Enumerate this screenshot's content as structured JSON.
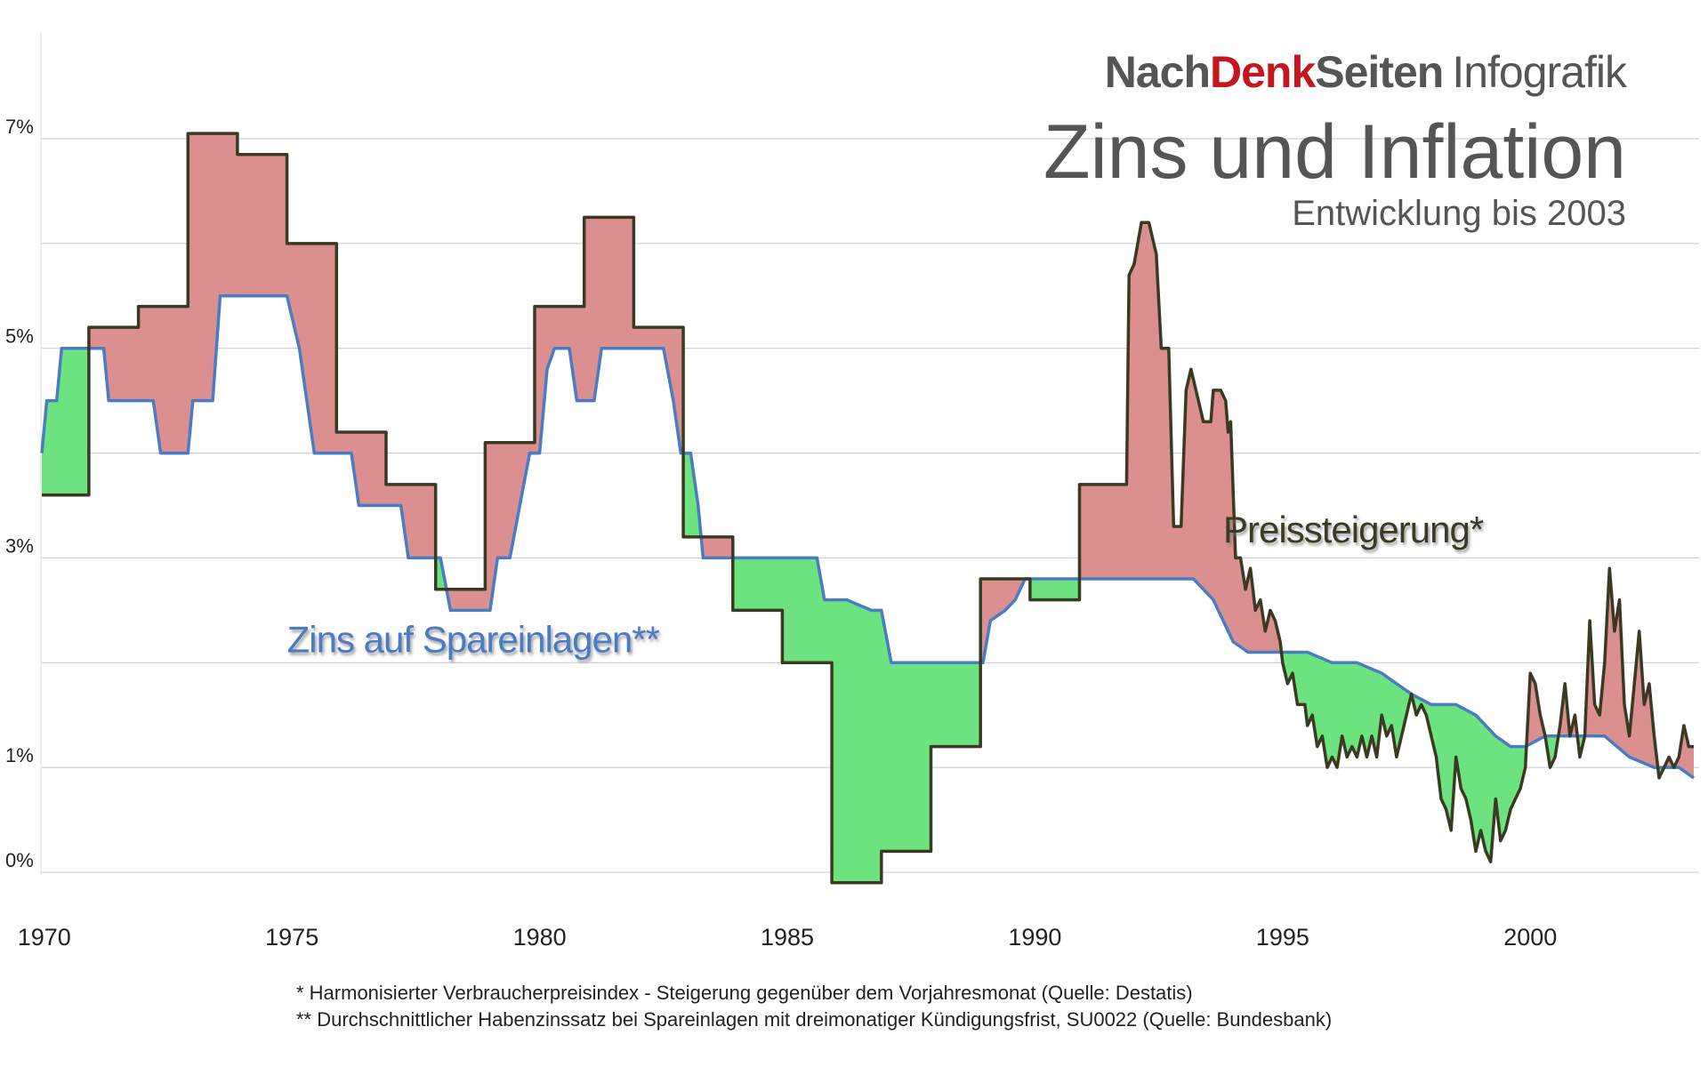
{
  "header": {
    "brand_nach": "Nach",
    "brand_denk": "Denk",
    "brand_seiten": "Seiten",
    "brand_suffix": "Infografik",
    "title": "Zins und Inflation",
    "subtitle": "Entwicklung bis 2003"
  },
  "footnotes": [
    "* Harmonisierter Verbraucherpreisindex - Steigerung gegenüber dem Vorjahresmonat (Quelle: Destatis)",
    "** Durchschnittlicher Habenzinssatz bei Spareinlagen mit dreimonatiger Kündigungsfrist, SU0022 (Quelle: Bundesbank)"
  ],
  "colors": {
    "inflation_line": "#3a3a22",
    "interest_line": "#4a7cc4",
    "inflation_above_fill": "#dc8f8f",
    "interest_above_fill": "#6ce37e",
    "grid": "#c8c8c8",
    "brand_red": "#c4161c",
    "text_gray": "#555555"
  },
  "chart_data": {
    "type": "area",
    "x_range": [
      1969.95,
      2003.3
    ],
    "ylim": [
      -0.2,
      7
    ],
    "y_ticks": [
      {
        "value": 0,
        "label": "0%"
      },
      {
        "value": 1,
        "label": "1%"
      },
      {
        "value": 3,
        "label": "3%"
      },
      {
        "value": 5,
        "label": "5%"
      },
      {
        "value": 7,
        "label": "7%"
      }
    ],
    "grid_values": [
      0,
      1,
      2,
      3,
      4,
      5,
      6,
      7
    ],
    "x_ticks": [
      {
        "value": 1970,
        "label": "1970"
      },
      {
        "value": 1975,
        "label": "1975"
      },
      {
        "value": 1980,
        "label": "1980"
      },
      {
        "value": 1985,
        "label": "1985"
      },
      {
        "value": 1990,
        "label": "1990"
      },
      {
        "value": 1995,
        "label": "1995"
      },
      {
        "value": 2000,
        "label": "2000"
      }
    ],
    "series": [
      {
        "name": "Preissteigerung*",
        "values": [
          [
            1969.95,
            3.6
          ],
          [
            1970.9,
            3.6
          ],
          [
            1970.9,
            5.2
          ],
          [
            1971.9,
            5.2
          ],
          [
            1971.9,
            5.4
          ],
          [
            1972.9,
            5.4
          ],
          [
            1972.9,
            7.05
          ],
          [
            1973.9,
            7.05
          ],
          [
            1973.9,
            6.85
          ],
          [
            1974.9,
            6.85
          ],
          [
            1974.9,
            6.0
          ],
          [
            1975.9,
            6.0
          ],
          [
            1975.9,
            4.2
          ],
          [
            1976.9,
            4.2
          ],
          [
            1976.9,
            3.7
          ],
          [
            1977.9,
            3.7
          ],
          [
            1977.9,
            2.7
          ],
          [
            1978.9,
            2.7
          ],
          [
            1978.9,
            4.1
          ],
          [
            1979.9,
            4.1
          ],
          [
            1979.9,
            5.4
          ],
          [
            1980.9,
            5.4
          ],
          [
            1980.9,
            6.25
          ],
          [
            1981.9,
            6.25
          ],
          [
            1981.9,
            5.2
          ],
          [
            1982.9,
            5.2
          ],
          [
            1982.9,
            3.2
          ],
          [
            1983.9,
            3.2
          ],
          [
            1983.9,
            2.5
          ],
          [
            1984.9,
            2.5
          ],
          [
            1984.9,
            2.0
          ],
          [
            1985.9,
            2.0
          ],
          [
            1985.9,
            -0.1
          ],
          [
            1986.9,
            -0.1
          ],
          [
            1986.9,
            0.2
          ],
          [
            1987.9,
            0.2
          ],
          [
            1987.9,
            1.2
          ],
          [
            1988.9,
            1.2
          ],
          [
            1988.9,
            2.8
          ],
          [
            1989.9,
            2.8
          ],
          [
            1989.9,
            2.6
          ],
          [
            1990.9,
            2.6
          ],
          [
            1990.9,
            3.7
          ],
          [
            1991.85,
            3.7
          ],
          [
            1991.9,
            5.7
          ],
          [
            1992.0,
            5.8
          ],
          [
            1992.15,
            6.2
          ],
          [
            1992.3,
            6.2
          ],
          [
            1992.45,
            5.9
          ],
          [
            1992.55,
            5.0
          ],
          [
            1992.7,
            5.0
          ],
          [
            1992.8,
            3.3
          ],
          [
            1992.95,
            3.3
          ],
          [
            1993.05,
            4.6
          ],
          [
            1993.15,
            4.8
          ],
          [
            1993.3,
            4.5
          ],
          [
            1993.4,
            4.3
          ],
          [
            1993.55,
            4.3
          ],
          [
            1993.6,
            4.6
          ],
          [
            1993.75,
            4.6
          ],
          [
            1993.85,
            4.5
          ],
          [
            1993.9,
            4.2
          ],
          [
            1993.95,
            4.3
          ],
          [
            1994.05,
            3.0
          ],
          [
            1994.15,
            3.0
          ],
          [
            1994.25,
            2.7
          ],
          [
            1994.35,
            2.9
          ],
          [
            1994.45,
            2.5
          ],
          [
            1994.55,
            2.6
          ],
          [
            1994.65,
            2.3
          ],
          [
            1994.75,
            2.5
          ],
          [
            1994.85,
            2.4
          ],
          [
            1994.95,
            2.2
          ],
          [
            1995.0,
            2.0
          ],
          [
            1995.1,
            1.8
          ],
          [
            1995.2,
            1.9
          ],
          [
            1995.3,
            1.6
          ],
          [
            1995.45,
            1.6
          ],
          [
            1995.5,
            1.4
          ],
          [
            1995.6,
            1.5
          ],
          [
            1995.7,
            1.2
          ],
          [
            1995.8,
            1.3
          ],
          [
            1995.9,
            1.0
          ],
          [
            1996.0,
            1.1
          ],
          [
            1996.1,
            1.0
          ],
          [
            1996.2,
            1.3
          ],
          [
            1996.3,
            1.1
          ],
          [
            1996.4,
            1.2
          ],
          [
            1996.5,
            1.1
          ],
          [
            1996.6,
            1.3
          ],
          [
            1996.7,
            1.1
          ],
          [
            1996.8,
            1.3
          ],
          [
            1996.9,
            1.1
          ],
          [
            1997.0,
            1.5
          ],
          [
            1997.1,
            1.3
          ],
          [
            1997.2,
            1.4
          ],
          [
            1997.3,
            1.1
          ],
          [
            1997.4,
            1.3
          ],
          [
            1997.5,
            1.5
          ],
          [
            1997.6,
            1.7
          ],
          [
            1997.7,
            1.5
          ],
          [
            1997.8,
            1.6
          ],
          [
            1997.9,
            1.5
          ],
          [
            1998.0,
            1.3
          ],
          [
            1998.1,
            1.1
          ],
          [
            1998.2,
            0.7
          ],
          [
            1998.3,
            0.6
          ],
          [
            1998.4,
            0.4
          ],
          [
            1998.5,
            1.1
          ],
          [
            1998.6,
            0.8
          ],
          [
            1998.7,
            0.7
          ],
          [
            1998.8,
            0.5
          ],
          [
            1998.9,
            0.2
          ],
          [
            1999.0,
            0.4
          ],
          [
            1999.1,
            0.2
          ],
          [
            1999.2,
            0.1
          ],
          [
            1999.3,
            0.7
          ],
          [
            1999.4,
            0.3
          ],
          [
            1999.5,
            0.4
          ],
          [
            1999.6,
            0.6
          ],
          [
            1999.7,
            0.7
          ],
          [
            1999.8,
            0.8
          ],
          [
            1999.9,
            1.0
          ],
          [
            2000.0,
            1.9
          ],
          [
            2000.1,
            1.8
          ],
          [
            2000.2,
            1.5
          ],
          [
            2000.3,
            1.3
          ],
          [
            2000.4,
            1.0
          ],
          [
            2000.5,
            1.1
          ],
          [
            2000.6,
            1.4
          ],
          [
            2000.7,
            1.8
          ],
          [
            2000.8,
            1.3
          ],
          [
            2000.9,
            1.5
          ],
          [
            2001.0,
            1.1
          ],
          [
            2001.1,
            1.3
          ],
          [
            2001.2,
            2.4
          ],
          [
            2001.3,
            1.6
          ],
          [
            2001.4,
            1.5
          ],
          [
            2001.5,
            2.0
          ],
          [
            2001.6,
            2.9
          ],
          [
            2001.7,
            2.3
          ],
          [
            2001.8,
            2.6
          ],
          [
            2001.9,
            1.6
          ],
          [
            2002.0,
            1.3
          ],
          [
            2002.1,
            1.8
          ],
          [
            2002.2,
            2.3
          ],
          [
            2002.3,
            1.6
          ],
          [
            2002.4,
            1.8
          ],
          [
            2002.5,
            1.3
          ],
          [
            2002.6,
            0.9
          ],
          [
            2002.7,
            1.0
          ],
          [
            2002.8,
            1.1
          ],
          [
            2002.9,
            1.0
          ],
          [
            2003.0,
            1.1
          ],
          [
            2003.1,
            1.4
          ],
          [
            2003.2,
            1.2
          ],
          [
            2003.3,
            1.2
          ]
        ]
      },
      {
        "name": "Zins auf Spareinlagen**",
        "values": [
          [
            1969.95,
            4.0
          ],
          [
            1970.05,
            4.5
          ],
          [
            1970.25,
            4.5
          ],
          [
            1970.35,
            5.0
          ],
          [
            1971.2,
            5.0
          ],
          [
            1971.3,
            4.5
          ],
          [
            1971.9,
            4.5
          ],
          [
            1972.0,
            4.5
          ],
          [
            1972.2,
            4.5
          ],
          [
            1972.35,
            4.0
          ],
          [
            1972.9,
            4.0
          ],
          [
            1973.0,
            4.5
          ],
          [
            1973.4,
            4.5
          ],
          [
            1973.55,
            5.5
          ],
          [
            1974.9,
            5.5
          ],
          [
            1975.15,
            5.0
          ],
          [
            1975.3,
            4.5
          ],
          [
            1975.45,
            4.0
          ],
          [
            1976.2,
            4.0
          ],
          [
            1976.35,
            3.5
          ],
          [
            1977.2,
            3.5
          ],
          [
            1977.35,
            3.0
          ],
          [
            1978.0,
            3.0
          ],
          [
            1978.2,
            2.5
          ],
          [
            1979.0,
            2.5
          ],
          [
            1979.15,
            3.0
          ],
          [
            1979.4,
            3.0
          ],
          [
            1979.6,
            3.5
          ],
          [
            1979.8,
            4.0
          ],
          [
            1980.0,
            4.0
          ],
          [
            1980.15,
            4.8
          ],
          [
            1980.3,
            5.0
          ],
          [
            1980.6,
            5.0
          ],
          [
            1980.75,
            4.5
          ],
          [
            1981.1,
            4.5
          ],
          [
            1981.25,
            5.0
          ],
          [
            1982.5,
            5.0
          ],
          [
            1982.7,
            4.5
          ],
          [
            1982.85,
            4.0
          ],
          [
            1983.05,
            4.0
          ],
          [
            1983.2,
            3.5
          ],
          [
            1983.3,
            3.0
          ],
          [
            1984.0,
            3.0
          ],
          [
            1985.6,
            3.0
          ],
          [
            1985.75,
            2.6
          ],
          [
            1986.2,
            2.6
          ],
          [
            1986.7,
            2.5
          ],
          [
            1986.9,
            2.5
          ],
          [
            1987.1,
            2.0
          ],
          [
            1987.8,
            2.0
          ],
          [
            1988.0,
            2.0
          ],
          [
            1988.7,
            2.0
          ],
          [
            1988.95,
            2.0
          ],
          [
            1989.1,
            2.4
          ],
          [
            1989.4,
            2.5
          ],
          [
            1989.6,
            2.6
          ],
          [
            1989.8,
            2.8
          ],
          [
            1990.2,
            2.8
          ],
          [
            1990.8,
            2.8
          ],
          [
            1991.2,
            2.8
          ],
          [
            1991.6,
            2.8
          ],
          [
            1992.0,
            2.8
          ],
          [
            1992.8,
            2.8
          ],
          [
            1993.2,
            2.8
          ],
          [
            1993.6,
            2.6
          ],
          [
            1994.0,
            2.2
          ],
          [
            1994.3,
            2.1
          ],
          [
            1994.6,
            2.1
          ],
          [
            1995.0,
            2.1
          ],
          [
            1995.5,
            2.1
          ],
          [
            1996.0,
            2.0
          ],
          [
            1996.5,
            2.0
          ],
          [
            1997.0,
            1.9
          ],
          [
            1997.3,
            1.8
          ],
          [
            1997.6,
            1.7
          ],
          [
            1998.0,
            1.6
          ],
          [
            1998.5,
            1.6
          ],
          [
            1998.9,
            1.5
          ],
          [
            1999.1,
            1.4
          ],
          [
            1999.3,
            1.3
          ],
          [
            1999.6,
            1.2
          ],
          [
            1999.9,
            1.2
          ],
          [
            2000.3,
            1.3
          ],
          [
            2000.6,
            1.3
          ],
          [
            2001.0,
            1.3
          ],
          [
            2001.5,
            1.3
          ],
          [
            2002.0,
            1.1
          ],
          [
            2002.5,
            1.0
          ],
          [
            2003.0,
            1.0
          ],
          [
            2003.3,
            0.9
          ]
        ]
      }
    ],
    "annotations": [
      {
        "text": "Preissteigerung*",
        "x": 1993.8,
        "y": 3.15,
        "series": "Preissteigerung*"
      },
      {
        "text": "Zins auf Spareinlagen**",
        "x": 1974.9,
        "y": 2.1,
        "series": "Zins auf Spareinlagen**"
      }
    ],
    "fill_between": {
      "inflation_above": "#dc8f8f",
      "interest_above": "#6ce37e"
    }
  }
}
